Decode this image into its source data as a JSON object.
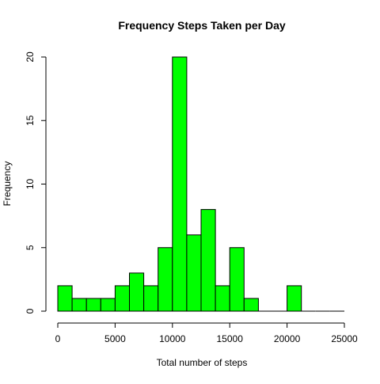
{
  "chart_data": {
    "type": "bar",
    "title": "Frequency Steps Taken per Day",
    "xlabel": "Total number of steps",
    "ylabel": "Frequency",
    "bin_width": 1250,
    "bins": [
      {
        "start": 0,
        "end": 1250,
        "count": 2
      },
      {
        "start": 1250,
        "end": 2500,
        "count": 1
      },
      {
        "start": 2500,
        "end": 3750,
        "count": 1
      },
      {
        "start": 3750,
        "end": 5000,
        "count": 1
      },
      {
        "start": 5000,
        "end": 6250,
        "count": 2
      },
      {
        "start": 6250,
        "end": 7500,
        "count": 3
      },
      {
        "start": 7500,
        "end": 8750,
        "count": 2
      },
      {
        "start": 8750,
        "end": 10000,
        "count": 5
      },
      {
        "start": 10000,
        "end": 11250,
        "count": 20
      },
      {
        "start": 11250,
        "end": 12500,
        "count": 6
      },
      {
        "start": 12500,
        "end": 13750,
        "count": 8
      },
      {
        "start": 13750,
        "end": 15000,
        "count": 2
      },
      {
        "start": 15000,
        "end": 16250,
        "count": 5
      },
      {
        "start": 16250,
        "end": 17500,
        "count": 1
      },
      {
        "start": 17500,
        "end": 18750,
        "count": 0
      },
      {
        "start": 18750,
        "end": 20000,
        "count": 0
      },
      {
        "start": 20000,
        "end": 21250,
        "count": 2
      },
      {
        "start": 21250,
        "end": 22500,
        "count": 0
      },
      {
        "start": 22500,
        "end": 23750,
        "count": 0
      },
      {
        "start": 23750,
        "end": 25000,
        "count": 0
      }
    ],
    "xlim": [
      0,
      25000
    ],
    "ylim": [
      0,
      20
    ],
    "xticks": [
      0,
      5000,
      10000,
      15000,
      20000,
      25000
    ],
    "yticks": [
      0,
      5,
      10,
      15,
      20
    ],
    "xtick_labels": [
      "0",
      "5000",
      "10000",
      "15000",
      "20000",
      "25000"
    ],
    "ytick_labels": [
      "0",
      "5",
      "10",
      "15",
      "20"
    ],
    "bar_color": "#00ff00",
    "bar_edge_color": "#000000",
    "grid": false,
    "legend": "none"
  }
}
